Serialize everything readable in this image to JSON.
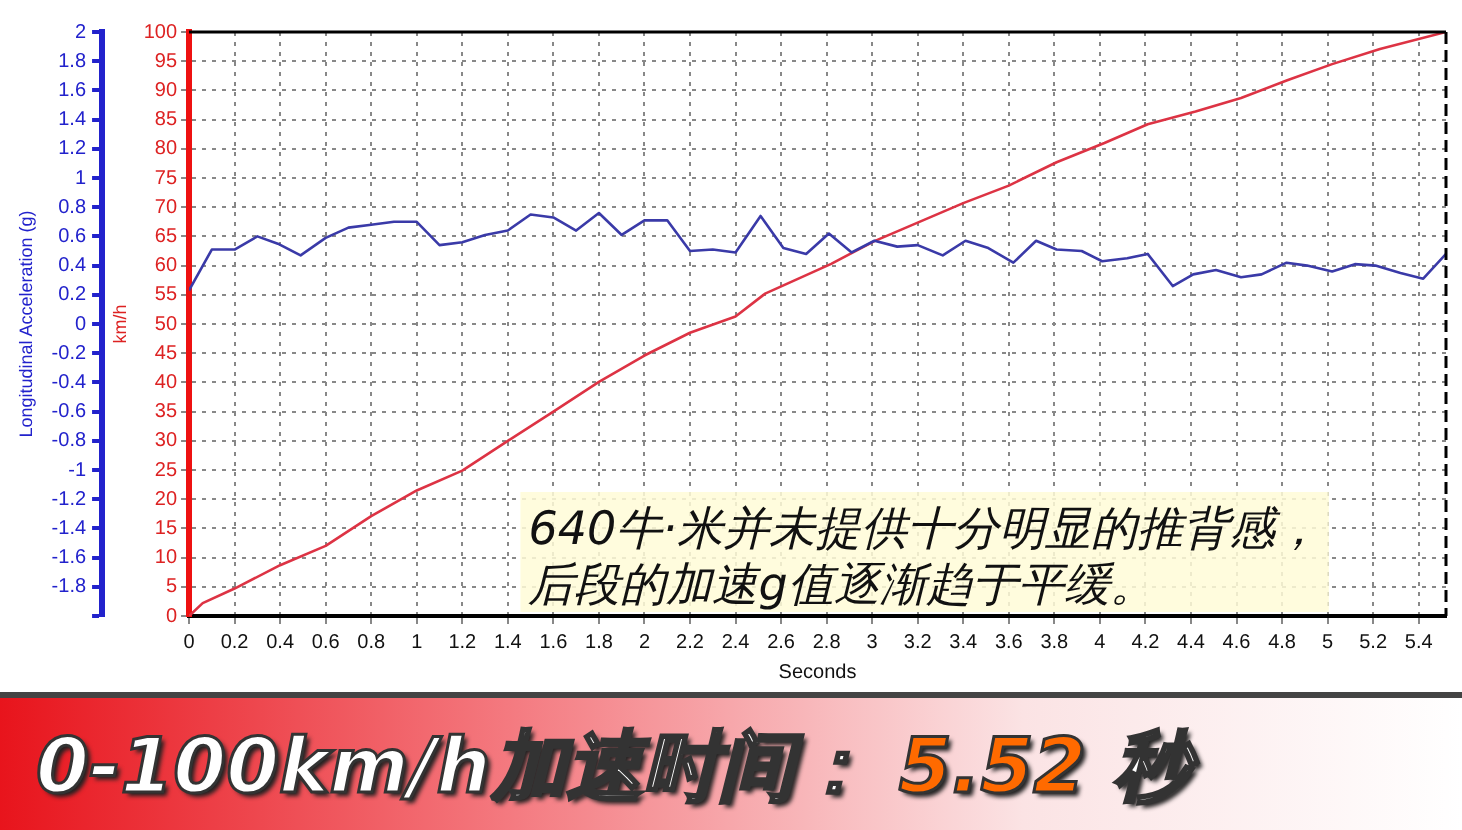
{
  "chart_data": {
    "type": "line",
    "xlabel": "Seconds",
    "ylabel": "Longitudinal Acceleration (g)",
    "y2label": "km/h",
    "xlim": [
      0,
      5.52
    ],
    "xticks": [
      0,
      0.2,
      0.4,
      0.6,
      0.8,
      1,
      1.2,
      1.4,
      1.6,
      1.8,
      2,
      2.2,
      2.4,
      2.6,
      2.8,
      3,
      3.2,
      3.4,
      3.6,
      3.8,
      4,
      4.2,
      4.4,
      4.6,
      4.8,
      5,
      5.2,
      5.4
    ],
    "ylim": [
      -2,
      2
    ],
    "yticks": [
      {
        "value": -2,
        "label": null
      },
      -1.8,
      -1.6,
      -1.4,
      -1.2,
      -1,
      -0.8,
      -0.6,
      -0.4,
      -0.2,
      0,
      0.2,
      0.4,
      0.6,
      0.8,
      1,
      1.2,
      1.4,
      1.6,
      1.8,
      2
    ],
    "y2lim": [
      0,
      100
    ],
    "y2ticks": [
      0,
      5,
      10,
      15,
      20,
      25,
      30,
      35,
      40,
      45,
      50,
      55,
      60,
      65,
      70,
      75,
      80,
      85,
      90,
      95,
      100
    ],
    "grid": true,
    "legend": false,
    "marker": "none",
    "line_style": "solid",
    "series": [
      {
        "color": "#3a3aa8",
        "x": [
          0,
          0.1,
          0.2,
          0.3,
          0.39,
          0.49,
          0.6,
          0.7,
          0.8,
          0.9,
          1.0,
          1.1,
          1.2,
          1.3,
          1.4,
          1.5,
          1.6,
          1.7,
          1.8,
          1.9,
          2.0,
          2.1,
          2.2,
          2.3,
          2.4,
          2.51,
          2.61,
          2.71,
          2.81,
          2.91,
          3.01,
          3.11,
          3.2,
          3.31,
          3.41,
          3.51,
          3.62,
          3.72,
          3.81,
          3.92,
          4.01,
          4.12,
          4.21,
          4.32,
          4.41,
          4.51,
          4.62,
          4.71,
          4.82,
          4.91,
          5.02,
          5.12,
          5.21,
          5.32,
          5.42,
          5.52
        ],
        "values": [
          0.23,
          0.51,
          0.51,
          0.6,
          0.55,
          0.47,
          0.59,
          0.66,
          0.68,
          0.7,
          0.7,
          0.54,
          0.56,
          0.61,
          0.64,
          0.75,
          0.73,
          0.64,
          0.76,
          0.61,
          0.71,
          0.71,
          0.5,
          0.51,
          0.49,
          0.74,
          0.52,
          0.48,
          0.62,
          0.49,
          0.57,
          0.53,
          0.54,
          0.47,
          0.57,
          0.52,
          0.42,
          0.57,
          0.51,
          0.5,
          0.43,
          0.45,
          0.48,
          0.26,
          0.34,
          0.37,
          0.32,
          0.34,
          0.42,
          0.4,
          0.36,
          0.41,
          0.4,
          0.35,
          0.31,
          0.48
        ]
      },
      {
        "color": "#dd3344",
        "axis": "y2",
        "x": [
          0,
          0.06,
          0.2,
          0.4,
          0.6,
          0.8,
          1.0,
          1.2,
          1.4,
          1.6,
          1.8,
          2.0,
          2.2,
          2.4,
          2.53,
          2.82,
          3.01,
          3.4,
          3.6,
          3.81,
          4.02,
          4.21,
          4.42,
          4.62,
          4.82,
          5.02,
          5.23,
          5.52
        ],
        "values": [
          0,
          2.2,
          4.7,
          8.7,
          12,
          17.1,
          21.5,
          24.9,
          30,
          35,
          40.1,
          44.6,
          48.5,
          51.3,
          55.2,
          60.3,
          64.2,
          70.7,
          73.7,
          77.7,
          81,
          84.2,
          86.4,
          88.7,
          91.7,
          94.5,
          97.1,
          100
        ]
      }
    ],
    "annotations": [
      "640牛·米并未提供十分明显的推背感，",
      "后段的加速g值逐渐趋于平缓。",
      "0-100km/h加速时间：",
      "5.52",
      "秒"
    ]
  }
}
